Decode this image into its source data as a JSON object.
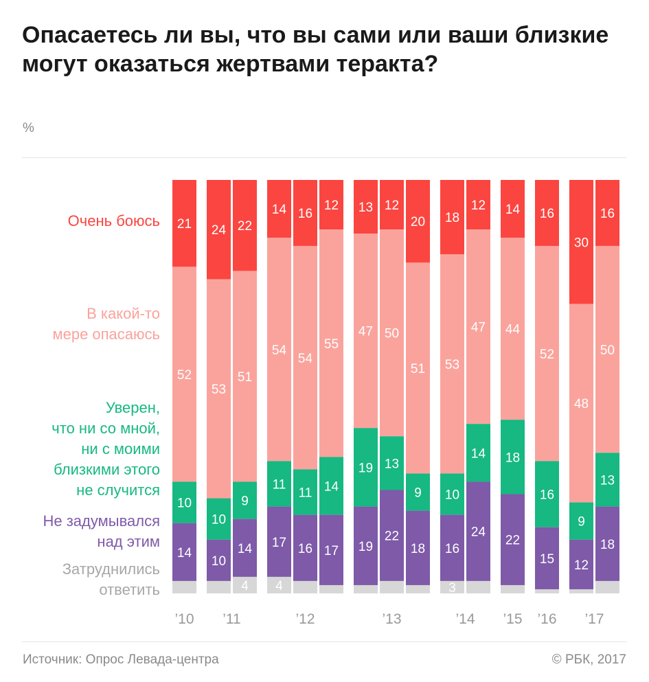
{
  "title": "Опасаетесь ли вы, что вы сами или ваши близкие могут оказаться жертвами теракта?",
  "unit": "%",
  "source": "Источник: Опрос Левада-центра",
  "copyright": "© РБК, 2017",
  "colors": {
    "very_afraid": "#fb4540",
    "somewhat": "#faa39c",
    "confident": "#17b882",
    "never_thought": "#7e5aa8",
    "hard_to_say": "#d7d7d7"
  },
  "chart_data": {
    "type": "bar",
    "stacked": true,
    "normalized_to": 100,
    "title": "Опасаетесь ли вы, что вы сами или ваши близкие могут оказаться жертвами теракта?",
    "ylabel": "%",
    "year_labels": [
      "’10",
      "’11",
      "’12",
      "’13",
      "’14",
      "’15",
      "’16",
      "’17"
    ],
    "groups": [
      1,
      2,
      3,
      3,
      2,
      1,
      1,
      2
    ],
    "series": [
      {
        "name": "Очень боюсь",
        "key": "very_afraid",
        "values": [
          21,
          24,
          22,
          14,
          16,
          12,
          13,
          12,
          20,
          18,
          12,
          14,
          16,
          30,
          16
        ]
      },
      {
        "name": "В какой-то мере опасаюсь",
        "key": "somewhat",
        "values": [
          52,
          53,
          51,
          54,
          54,
          55,
          47,
          50,
          51,
          53,
          47,
          44,
          52,
          48,
          50
        ]
      },
      {
        "name": "Уверен, что ни со мной, ни с моими близкими этого не случится",
        "key": "confident",
        "values": [
          10,
          10,
          9,
          11,
          11,
          14,
          19,
          13,
          9,
          10,
          14,
          18,
          16,
          9,
          13
        ]
      },
      {
        "name": "Не задумывался над этим",
        "key": "never_thought",
        "values": [
          14,
          10,
          14,
          17,
          16,
          17,
          19,
          22,
          18,
          16,
          24,
          22,
          15,
          12,
          18
        ]
      },
      {
        "name": "Затруднились ответить",
        "key": "hard_to_say",
        "values": [
          3,
          3,
          4,
          4,
          3,
          2,
          2,
          3,
          2,
          3,
          3,
          2,
          1,
          1,
          3
        ]
      }
    ],
    "value_labels_shown": {
      "hard_to_say": [
        false,
        false,
        true,
        true,
        false,
        false,
        false,
        false,
        false,
        true,
        false,
        false,
        false,
        false,
        false
      ]
    }
  },
  "legend": [
    {
      "key": "very_afraid",
      "lines": [
        "Очень боюсь"
      ]
    },
    {
      "key": "somewhat",
      "lines": [
        "В какой-то",
        "мере опасаюсь"
      ]
    },
    {
      "key": "confident",
      "lines": [
        "Уверен,",
        "что ни со мной,",
        "ни с моими",
        "близкими этого",
        "не случится"
      ]
    },
    {
      "key": "never_thought",
      "lines": [
        "Не задумывался",
        "над этим"
      ]
    },
    {
      "key": "hard_to_say",
      "lines": [
        "Затруднились",
        "ответить"
      ]
    }
  ]
}
